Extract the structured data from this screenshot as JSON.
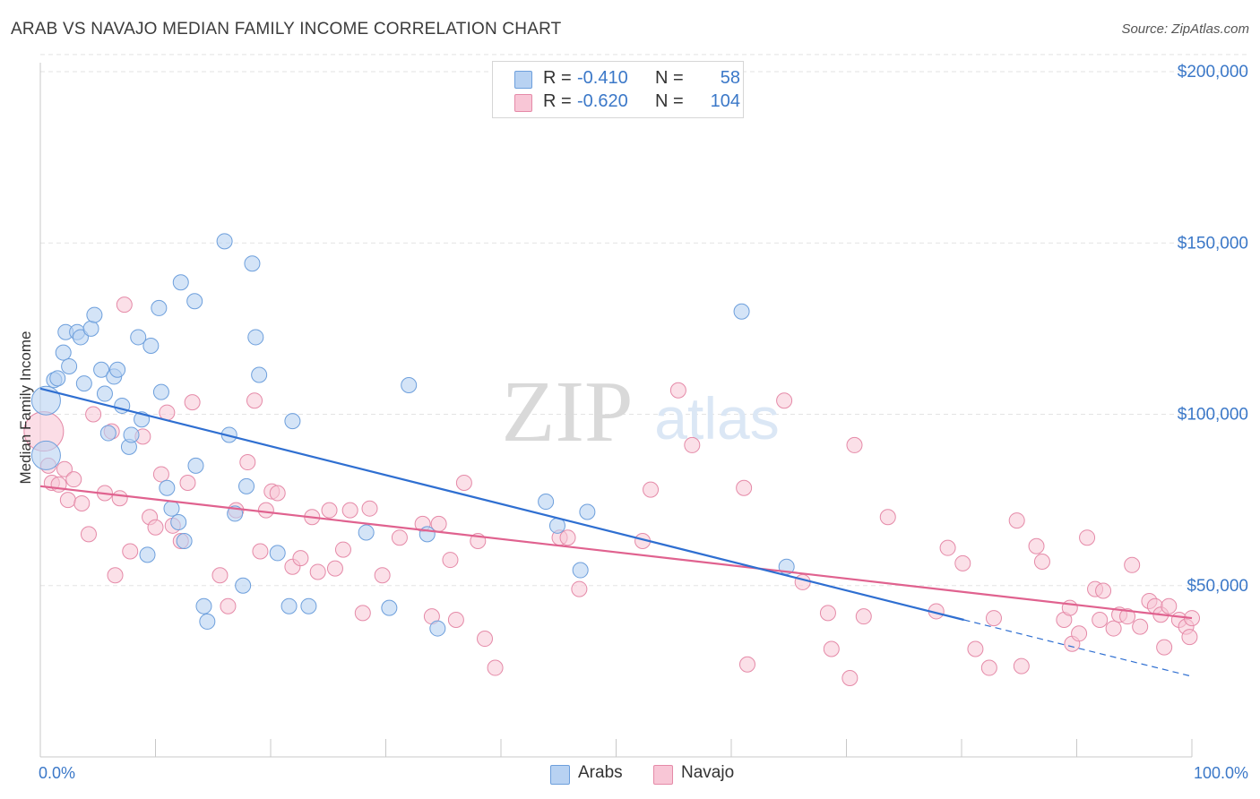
{
  "title": "ARAB VS NAVAJO MEDIAN FAMILY INCOME CORRELATION CHART",
  "source": "Source: ZipAtlas.com",
  "watermark": {
    "zip": "ZIP",
    "atlas": "atlas"
  },
  "colors": {
    "arabs_fill": "#b8d2f2",
    "arabs_stroke": "#6d9fdc",
    "arabs_line": "#2f6fd1",
    "navajo_fill": "#f8c6d6",
    "navajo_stroke": "#e58aa8",
    "navajo_line": "#e0628f",
    "accent_text": "#3b78c8"
  },
  "legend": {
    "rows": [
      {
        "r_label": "R =",
        "r_value": "-0.410",
        "n_label": "N =",
        "n_value": "58"
      },
      {
        "r_label": "R =",
        "r_value": "-0.620",
        "n_label": "N =",
        "n_value": "104"
      }
    ]
  },
  "chart_data": {
    "type": "scatter",
    "title": "ARAB VS NAVAJO MEDIAN FAMILY INCOME CORRELATION CHART",
    "xlabel": "",
    "ylabel": "Median Family Income",
    "xlim": [
      0,
      100
    ],
    "ylim": [
      0,
      205000
    ],
    "x_tick_labels": [
      "0.0%",
      "100.0%"
    ],
    "y_ticks": [
      50000,
      100000,
      150000,
      200000
    ],
    "y_tick_labels": [
      "$50,000",
      "$100,000",
      "$150,000",
      "$200,000"
    ],
    "grid": "horizontal dashed",
    "legend_position": "top-center",
    "series": [
      {
        "name": "Arabs",
        "points": [
          [
            0.5,
            104000
          ],
          [
            0.5,
            88000
          ],
          [
            1.2,
            110000
          ],
          [
            1.5,
            110500
          ],
          [
            2,
            118000
          ],
          [
            2.2,
            124000
          ],
          [
            2.5,
            114000
          ],
          [
            3.2,
            124000
          ],
          [
            3.5,
            122500
          ],
          [
            3.8,
            109000
          ],
          [
            4.4,
            125000
          ],
          [
            4.7,
            129000
          ],
          [
            5.3,
            113000
          ],
          [
            5.6,
            106000
          ],
          [
            5.9,
            94500
          ],
          [
            6.4,
            111000
          ],
          [
            6.7,
            113000
          ],
          [
            7.1,
            102500
          ],
          [
            7.7,
            90500
          ],
          [
            7.9,
            94000
          ],
          [
            8.5,
            122500
          ],
          [
            8.8,
            98500
          ],
          [
            9.3,
            59000
          ],
          [
            9.6,
            120000
          ],
          [
            10.3,
            131000
          ],
          [
            10.5,
            106500
          ],
          [
            11,
            78500
          ],
          [
            11.4,
            72500
          ],
          [
            12.0,
            68500
          ],
          [
            12.5,
            63000
          ],
          [
            12.2,
            138500
          ],
          [
            13.4,
            133000
          ],
          [
            13.5,
            85000
          ],
          [
            14.2,
            44000
          ],
          [
            14.5,
            39500
          ],
          [
            16,
            150500
          ],
          [
            16.4,
            94000
          ],
          [
            16.9,
            71000
          ],
          [
            17.6,
            50000
          ],
          [
            17.9,
            79000
          ],
          [
            18.4,
            144000
          ],
          [
            18.7,
            122500
          ],
          [
            19.0,
            111500
          ],
          [
            20.6,
            59500
          ],
          [
            21.6,
            44000
          ],
          [
            21.9,
            98000
          ],
          [
            23.3,
            44000
          ],
          [
            28.3,
            65500
          ],
          [
            30.3,
            43500
          ],
          [
            32,
            108500
          ],
          [
            33.6,
            65000
          ],
          [
            34.5,
            37500
          ],
          [
            43.9,
            74500
          ],
          [
            44.9,
            67500
          ],
          [
            46.9,
            54500
          ],
          [
            47.5,
            71500
          ],
          [
            60.9,
            130000
          ],
          [
            64.8,
            55500
          ]
        ],
        "trend": {
          "x": [
            0,
            80.2
          ],
          "y": [
            107500,
            40000
          ]
        },
        "trend_extension": {
          "x": [
            80.2,
            100
          ],
          "y": [
            40000,
            23500
          ]
        }
      },
      {
        "name": "Navajo",
        "points": [
          [
            0.3,
            95000
          ],
          [
            0.7,
            85000
          ],
          [
            1.0,
            80000
          ],
          [
            1.6,
            79500
          ],
          [
            2.1,
            84000
          ],
          [
            2.4,
            75000
          ],
          [
            2.9,
            81000
          ],
          [
            3.6,
            74000
          ],
          [
            4.2,
            65000
          ],
          [
            4.6,
            100000
          ],
          [
            5.6,
            77000
          ],
          [
            6.2,
            95000
          ],
          [
            6.5,
            53000
          ],
          [
            6.9,
            75500
          ],
          [
            7.3,
            132000
          ],
          [
            7.8,
            60000
          ],
          [
            8.9,
            93500
          ],
          [
            9.5,
            70000
          ],
          [
            10.0,
            67000
          ],
          [
            10.5,
            82500
          ],
          [
            11.0,
            100500
          ],
          [
            11.5,
            67500
          ],
          [
            12.2,
            63000
          ],
          [
            12.8,
            80000
          ],
          [
            13.2,
            103500
          ],
          [
            15.6,
            53000
          ],
          [
            16.3,
            44000
          ],
          [
            17,
            72000
          ],
          [
            18.0,
            86000
          ],
          [
            18.6,
            104000
          ],
          [
            19.1,
            60000
          ],
          [
            19.6,
            72000
          ],
          [
            20.1,
            77500
          ],
          [
            20.6,
            77000
          ],
          [
            21.9,
            55500
          ],
          [
            22.6,
            58000
          ],
          [
            23.6,
            70000
          ],
          [
            24.1,
            54000
          ],
          [
            25.1,
            72000
          ],
          [
            25.6,
            55000
          ],
          [
            26.3,
            60500
          ],
          [
            26.9,
            72000
          ],
          [
            28.0,
            42000
          ],
          [
            28.6,
            72500
          ],
          [
            29.7,
            53000
          ],
          [
            31.2,
            64000
          ],
          [
            33.2,
            68000
          ],
          [
            34.0,
            41000
          ],
          [
            34.6,
            68000
          ],
          [
            35.6,
            57500
          ],
          [
            36.1,
            40000
          ],
          [
            36.8,
            80000
          ],
          [
            38.0,
            63000
          ],
          [
            38.6,
            34500
          ],
          [
            39.5,
            26000
          ],
          [
            45.1,
            64000
          ],
          [
            45.8,
            64000
          ],
          [
            46.8,
            49000
          ],
          [
            52.3,
            63000
          ],
          [
            53.0,
            78000
          ],
          [
            55.4,
            107000
          ],
          [
            56.6,
            91000
          ],
          [
            61.1,
            78500
          ],
          [
            61.4,
            27000
          ],
          [
            64.6,
            104000
          ],
          [
            66.2,
            51000
          ],
          [
            68.4,
            42000
          ],
          [
            68.7,
            31500
          ],
          [
            70.3,
            23000
          ],
          [
            70.7,
            91000
          ],
          [
            71.5,
            41000
          ],
          [
            73.6,
            70000
          ],
          [
            77.8,
            42500
          ],
          [
            78.8,
            61000
          ],
          [
            80.1,
            56500
          ],
          [
            81.2,
            31500
          ],
          [
            82.4,
            26000
          ],
          [
            82.8,
            40500
          ],
          [
            84.8,
            69000
          ],
          [
            85.2,
            26500
          ],
          [
            86.5,
            61500
          ],
          [
            87.0,
            57000
          ],
          [
            88.9,
            40000
          ],
          [
            89.4,
            43500
          ],
          [
            89.6,
            33000
          ],
          [
            90.2,
            36000
          ],
          [
            90.9,
            64000
          ],
          [
            91.6,
            49000
          ],
          [
            92.0,
            40000
          ],
          [
            92.3,
            48500
          ],
          [
            93.2,
            37500
          ],
          [
            93.7,
            41500
          ],
          [
            94.4,
            41000
          ],
          [
            94.8,
            56000
          ],
          [
            95.5,
            38000
          ],
          [
            96.3,
            45500
          ],
          [
            96.8,
            44000
          ],
          [
            97.3,
            41500
          ],
          [
            97.6,
            32000
          ],
          [
            98.0,
            44000
          ],
          [
            98.9,
            40000
          ],
          [
            99.5,
            38000
          ],
          [
            99.8,
            35000
          ],
          [
            100.0,
            40500
          ]
        ],
        "trend": {
          "x": [
            0,
            100
          ],
          "y": [
            79000,
            40500
          ]
        }
      }
    ]
  },
  "bottom_legend": {
    "items": [
      {
        "label": "Arabs"
      },
      {
        "label": "Navajo"
      }
    ]
  }
}
